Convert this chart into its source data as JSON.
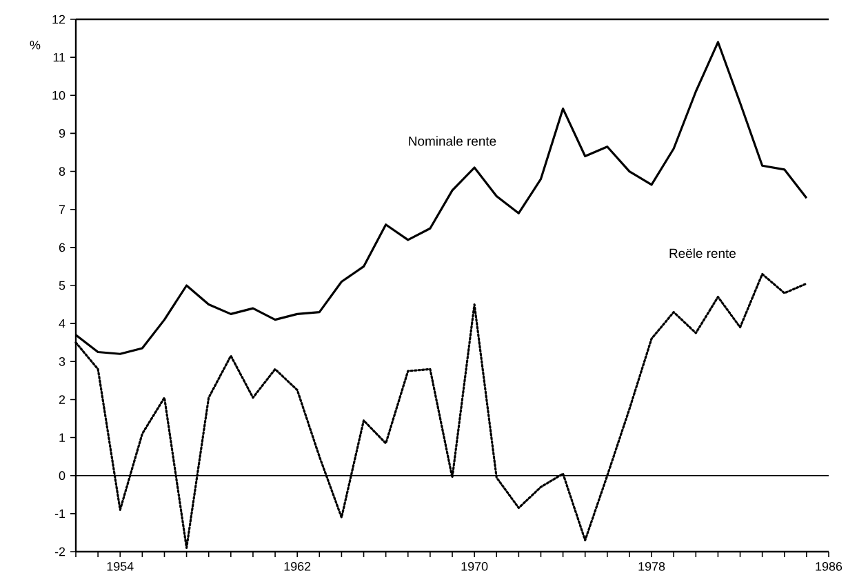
{
  "chart_data": {
    "type": "line",
    "ylabel": "%",
    "x": [
      1952,
      1953,
      1954,
      1955,
      1956,
      1957,
      1958,
      1959,
      1960,
      1961,
      1962,
      1963,
      1964,
      1965,
      1966,
      1967,
      1968,
      1969,
      1970,
      1971,
      1972,
      1973,
      1974,
      1975,
      1976,
      1977,
      1978,
      1979,
      1980,
      1981,
      1982,
      1983,
      1984,
      1985
    ],
    "series": [
      {
        "name": "Nominale rente",
        "color": "#000000",
        "line_style": "solid",
        "values": [
          3.7,
          3.25,
          3.2,
          3.35,
          4.1,
          5.0,
          4.5,
          4.25,
          4.4,
          4.1,
          4.25,
          4.3,
          5.1,
          5.5,
          6.6,
          6.2,
          6.5,
          7.5,
          8.1,
          7.35,
          6.9,
          7.8,
          9.65,
          8.4,
          8.65,
          8.0,
          7.65,
          8.6,
          10.1,
          11.4,
          9.8,
          8.15,
          8.05,
          7.3
        ]
      },
      {
        "name": "Reële rente",
        "color": "#000000",
        "line_style": "dotted",
        "values": [
          3.5,
          2.8,
          -0.9,
          1.1,
          2.05,
          -1.9,
          2.05,
          3.15,
          2.05,
          2.8,
          2.25,
          0.5,
          -1.1,
          1.45,
          0.85,
          2.75,
          2.8,
          -0.05,
          4.5,
          -0.05,
          -0.85,
          -0.3,
          0.05,
          -1.7,
          0.0,
          1.75,
          3.6,
          4.3,
          3.75,
          4.7,
          3.9,
          5.3,
          4.8,
          5.05
        ]
      }
    ],
    "xlim": [
      1952,
      1986
    ],
    "ylim": [
      -2,
      12
    ],
    "xticks": [
      {
        "value": 1952,
        "label": null
      },
      {
        "value": 1953,
        "label": null
      },
      1954,
      {
        "value": 1955,
        "label": null
      },
      {
        "value": 1956,
        "label": null
      },
      {
        "value": 1957,
        "label": null
      },
      {
        "value": 1958,
        "label": null
      },
      {
        "value": 1959,
        "label": null
      },
      {
        "value": 1960,
        "label": null
      },
      {
        "value": 1961,
        "label": null
      },
      1962,
      {
        "value": 1963,
        "label": null
      },
      {
        "value": 1964,
        "label": null
      },
      {
        "value": 1965,
        "label": null
      },
      {
        "value": 1966,
        "label": null
      },
      {
        "value": 1967,
        "label": null
      },
      {
        "value": 1968,
        "label": null
      },
      {
        "value": 1969,
        "label": null
      },
      1970,
      {
        "value": 1971,
        "label": null
      },
      {
        "value": 1972,
        "label": null
      },
      {
        "value": 1973,
        "label": null
      },
      {
        "value": 1974,
        "label": null
      },
      {
        "value": 1975,
        "label": null
      },
      {
        "value": 1976,
        "label": null
      },
      {
        "value": 1977,
        "label": null
      },
      1978,
      {
        "value": 1979,
        "label": null
      },
      {
        "value": 1980,
        "label": null
      },
      {
        "value": 1981,
        "label": null
      },
      {
        "value": 1982,
        "label": null
      },
      {
        "value": 1983,
        "label": null
      },
      {
        "value": 1984,
        "label": null
      },
      {
        "value": 1985,
        "label": null
      },
      1986
    ],
    "yticks": [
      -2,
      -1,
      0,
      1,
      2,
      3,
      4,
      5,
      6,
      7,
      8,
      9,
      10,
      11,
      12
    ],
    "ref_lines": [
      {
        "axis": "y",
        "value": 0,
        "color": "#000000"
      }
    ],
    "grid": false,
    "legend": false
  }
}
